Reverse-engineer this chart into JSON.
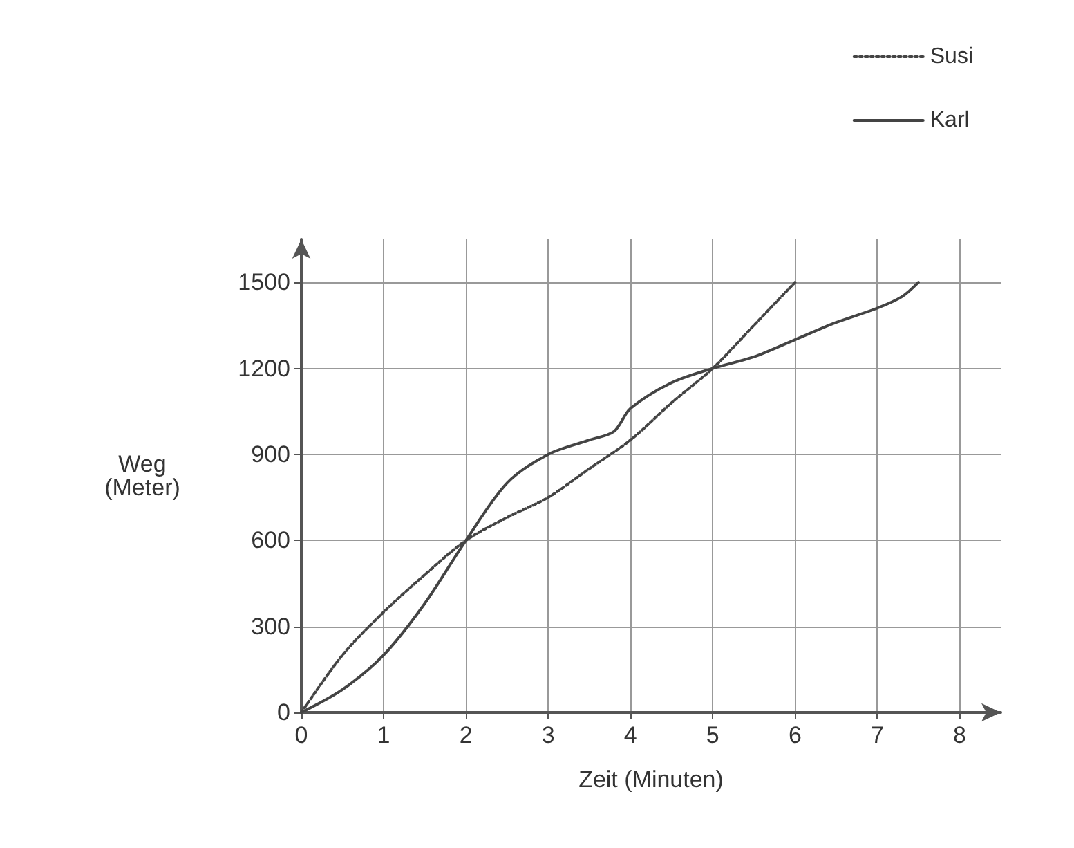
{
  "chart_data": {
    "type": "line",
    "xlabel": "Zeit (Minuten)",
    "ylabel": "Weg\n(Meter)",
    "xlim": [
      0,
      8.5
    ],
    "xticks": [
      0,
      1,
      2,
      3,
      4,
      5,
      6,
      7,
      8
    ],
    "ylim": [
      0,
      1650
    ],
    "yticks": [
      0,
      300,
      600,
      900,
      1200,
      1500
    ],
    "grid": true,
    "legend": "top right",
    "marker": "none",
    "series": [
      {
        "name": "Susi",
        "color": "#444444",
        "line_style": "dotted",
        "x": [
          0,
          0.5,
          1,
          1.5,
          2,
          2.5,
          3,
          3.5,
          4,
          4.5,
          5,
          5.5,
          6
        ],
        "values": [
          0,
          200,
          350,
          480,
          600,
          680,
          750,
          850,
          950,
          1080,
          1200,
          1350,
          1500
        ]
      },
      {
        "name": "Karl",
        "color": "#444444",
        "line_style": "solid",
        "x": [
          0,
          0.5,
          1,
          1.5,
          2,
          2.5,
          3,
          3.5,
          3.8,
          4,
          4.5,
          5,
          5.5,
          6,
          6.5,
          7,
          7.3,
          7.5
        ],
        "values": [
          0,
          80,
          200,
          380,
          600,
          800,
          900,
          950,
          980,
          1060,
          1150,
          1200,
          1240,
          1300,
          1360,
          1410,
          1450,
          1500
        ]
      }
    ]
  }
}
